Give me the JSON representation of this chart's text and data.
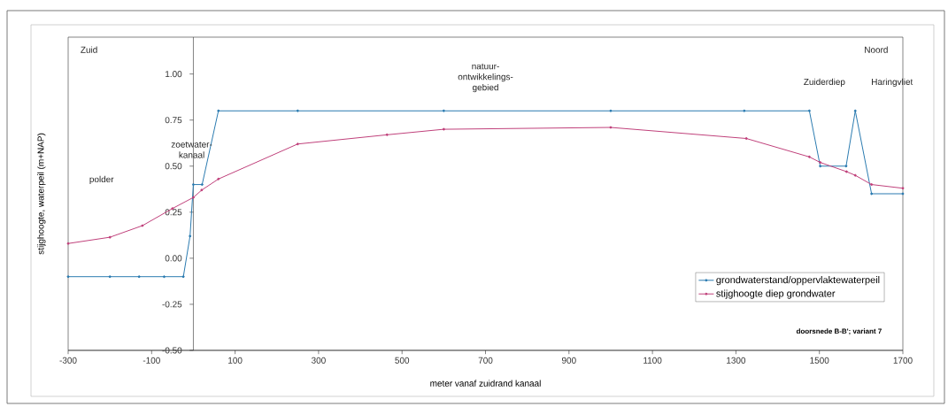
{
  "chart_data": {
    "type": "line",
    "xlabel": "meter vanaf zuidrand kanaal",
    "ylabel": "stijghoogte, waterpeil (m+NAP)",
    "xlim": [
      -300,
      1700
    ],
    "ylim": [
      -0.5,
      1.2
    ],
    "xticks": [
      -300,
      -100,
      100,
      300,
      500,
      700,
      900,
      1100,
      1300,
      1500,
      1700
    ],
    "yticks": [
      {
        "value": -0.5,
        "label": "-0.50"
      },
      {
        "value": -0.25,
        "label": "-0.25"
      },
      {
        "value": 0,
        "label": "0.00"
      },
      {
        "value": 0.25,
        "label": "0.25"
      },
      {
        "value": 0.5,
        "label": "0.50"
      },
      {
        "value": 0.75,
        "label": "0.75"
      },
      {
        "value": 1,
        "label": "1.00"
      }
    ],
    "series": [
      {
        "name": "grondwaterstand/oppervlaktewaterpeil",
        "color": "#2a7ab0",
        "x": [
          -300,
          -200,
          -130,
          -70,
          -24,
          -8,
          0,
          21,
          60,
          250,
          600,
          1000,
          1320,
          1476,
          1502,
          1564,
          1586,
          1625,
          1700
        ],
        "values": [
          -0.1,
          -0.1,
          -0.1,
          -0.1,
          -0.1,
          0.12,
          0.4,
          0.4,
          0.8,
          0.8,
          0.8,
          0.8,
          0.8,
          0.8,
          0.5,
          0.5,
          0.8,
          0.35,
          0.35
        ]
      },
      {
        "name": "stijghoogte diep grondwater",
        "color": "#c0407a",
        "x": [
          -300,
          -200,
          -122,
          -50,
          0,
          20,
          60,
          250,
          464,
          600,
          1000,
          1325,
          1476,
          1502,
          1565,
          1586,
          1625,
          1700
        ],
        "values": [
          0.08,
          0.114,
          0.177,
          0.27,
          0.33,
          0.37,
          0.43,
          0.62,
          0.67,
          0.7,
          0.71,
          0.65,
          0.55,
          0.52,
          0.47,
          0.45,
          0.4,
          0.38
        ]
      }
    ],
    "annotations": [
      "Zuid",
      "Noord",
      "polder",
      "zoetwater-kanaal",
      "natuur-ontwikkelings-gebied",
      "Zuiderdiep",
      "Haringvliet",
      "doorsnede B-B'; variant 7"
    ],
    "legend": "bottom right",
    "marker": "circle",
    "line_style": "solid",
    "grid": false
  }
}
